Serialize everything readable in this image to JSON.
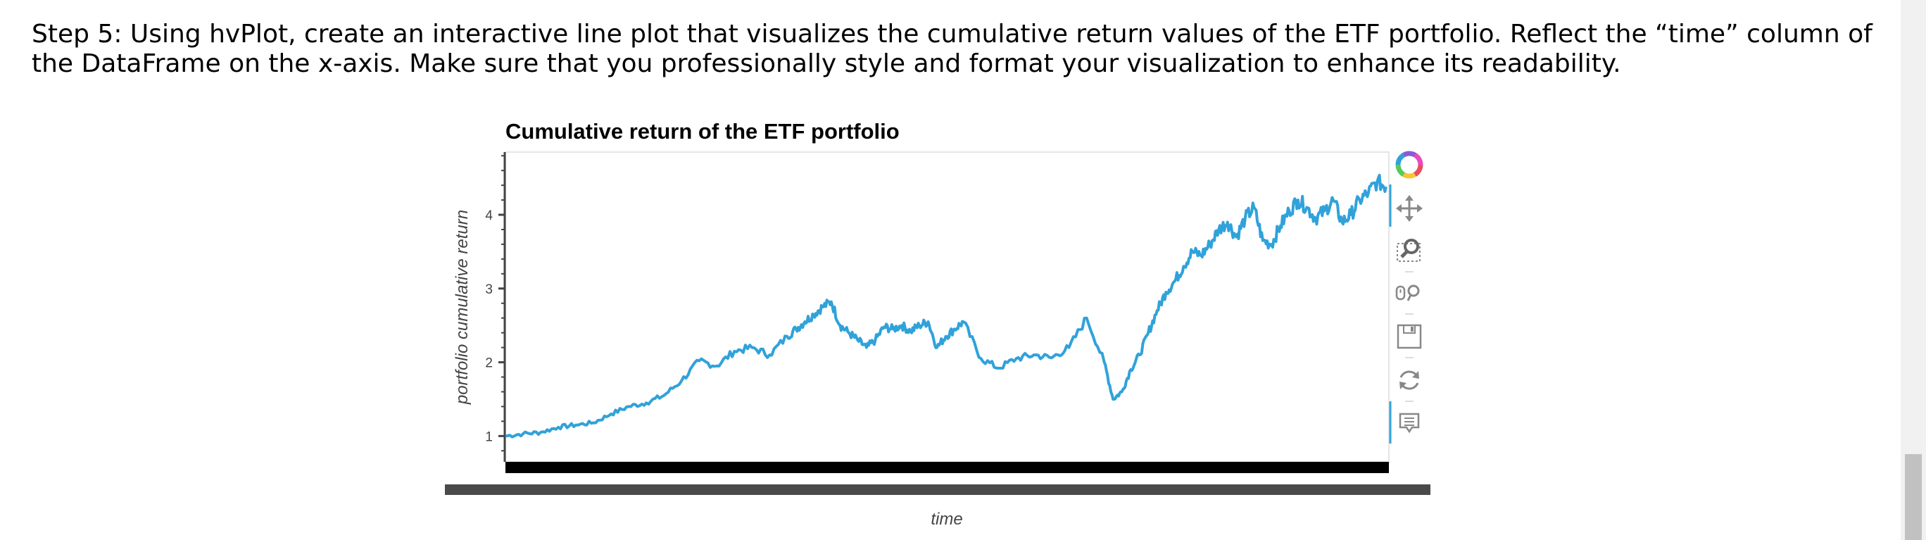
{
  "instruction": {
    "text": "Step 5: Using hvPlot, create an interactive line plot that visualizes the cumulative return values of the ETF portfolio. Reflect the “time” column of the DataFrame on the x-axis. Make sure that you professionally style and format your visualization to enhance its readability."
  },
  "toolbar": {
    "tools": [
      "bokeh-logo-icon",
      "pan-icon",
      "box-zoom-icon",
      "wheel-zoom-icon",
      "save-icon",
      "reset-icon",
      "hover-icon"
    ]
  },
  "colors": {
    "line": "#30a2da",
    "text": "#000000",
    "axis": "#444444",
    "scrollbar_track": "#4a4a4a"
  },
  "chart_data": {
    "type": "line",
    "title": "Cumulative return of the ETF portfolio",
    "xlabel": "time",
    "ylabel": "portfolio cumulative return",
    "yticks": [
      "1",
      "2",
      "3",
      "4"
    ],
    "ylim": [
      0.65,
      4.85
    ],
    "x_ticklabels_visible": false,
    "grid": false,
    "series": [
      {
        "x": [
          0,
          2,
          4,
          6,
          8,
          10,
          12,
          14,
          16,
          18,
          20,
          22,
          24,
          26,
          28,
          30,
          32,
          33,
          34,
          35,
          36,
          37,
          38,
          39,
          40,
          41,
          42,
          43,
          44,
          45,
          46,
          47,
          48,
          49,
          50,
          51,
          52,
          54,
          56,
          58,
          60,
          62,
          64,
          66,
          68,
          69,
          70,
          71,
          72,
          73,
          74,
          75,
          76,
          77,
          78,
          79,
          80,
          81,
          82,
          83,
          84,
          85,
          86,
          87,
          88,
          89,
          90,
          91,
          92,
          93,
          94,
          95,
          96,
          97,
          98,
          99,
          100
        ],
        "values": [
          1.0,
          1.03,
          1.05,
          1.12,
          1.15,
          1.18,
          1.3,
          1.4,
          1.45,
          1.55,
          1.75,
          2.02,
          1.95,
          2.15,
          2.2,
          2.1,
          2.35,
          2.45,
          2.55,
          2.65,
          2.75,
          2.82,
          2.5,
          2.4,
          2.3,
          2.2,
          2.3,
          2.48,
          2.45,
          2.5,
          2.42,
          2.5,
          2.55,
          2.2,
          2.35,
          2.45,
          2.55,
          2.05,
          1.92,
          2.05,
          2.1,
          2.06,
          2.2,
          2.6,
          2.0,
          1.5,
          1.6,
          1.9,
          2.1,
          2.4,
          2.7,
          2.95,
          3.1,
          3.3,
          3.5,
          3.45,
          3.6,
          3.8,
          3.9,
          3.7,
          3.95,
          4.1,
          3.65,
          3.6,
          3.85,
          4.05,
          4.2,
          4.1,
          3.95,
          4.05,
          4.2,
          3.9,
          4.0,
          4.2,
          4.3,
          4.45,
          4.38
        ]
      }
    ]
  }
}
